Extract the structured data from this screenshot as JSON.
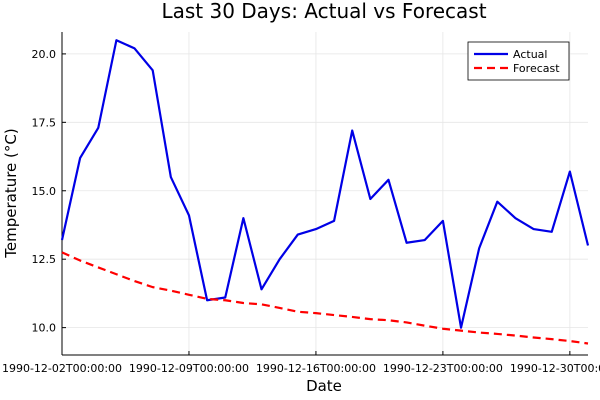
{
  "colors": {
    "actual": "#0000e6",
    "forecast": "#ff0000",
    "grid": "#e6e6e6",
    "axis": "#000000"
  },
  "chart_data": {
    "type": "line",
    "title": "Last 30 Days: Actual vs Forecast",
    "xlabel": "Date",
    "ylabel": "Temperature (°C)",
    "x_type": "date",
    "xlim": [
      "1990-12-02",
      "1990-12-31"
    ],
    "ylim": [
      9.0,
      20.8
    ],
    "grid": true,
    "legend_position": "top-right",
    "x_ticks": [
      {
        "value": "1990-12-02",
        "label": "1990-12-02T00:00:00"
      },
      {
        "value": "1990-12-09",
        "label": "1990-12-09T00:00:00"
      },
      {
        "value": "1990-12-16",
        "label": "1990-12-16T00:00:00"
      },
      {
        "value": "1990-12-23",
        "label": "1990-12-23T00:00:00"
      },
      {
        "value": "1990-12-30",
        "label": "1990-12-30T00:00:00"
      }
    ],
    "y_ticks": [
      {
        "value": 10.0,
        "label": "10.0"
      },
      {
        "value": 12.5,
        "label": "12.5"
      },
      {
        "value": 15.0,
        "label": "15.0"
      },
      {
        "value": 17.5,
        "label": "17.5"
      },
      {
        "value": 20.0,
        "label": "20.0"
      }
    ],
    "series": [
      {
        "name": "Actual",
        "style": "solid",
        "points": [
          [
            "1990-12-02",
            13.2
          ],
          [
            "1990-12-03",
            16.2
          ],
          [
            "1990-12-04",
            17.3
          ],
          [
            "1990-12-05",
            20.5
          ],
          [
            "1990-12-06",
            20.2
          ],
          [
            "1990-12-07",
            19.4
          ],
          [
            "1990-12-08",
            15.5
          ],
          [
            "1990-12-09",
            14.1
          ],
          [
            "1990-12-10",
            11.0
          ],
          [
            "1990-12-11",
            11.1
          ],
          [
            "1990-12-12",
            14.0
          ],
          [
            "1990-12-13",
            11.4
          ],
          [
            "1990-12-14",
            12.5
          ],
          [
            "1990-12-15",
            13.4
          ],
          [
            "1990-12-16",
            13.6
          ],
          [
            "1990-12-17",
            13.9
          ],
          [
            "1990-12-18",
            17.2
          ],
          [
            "1990-12-19",
            14.7
          ],
          [
            "1990-12-20",
            15.4
          ],
          [
            "1990-12-21",
            13.1
          ],
          [
            "1990-12-22",
            13.2
          ],
          [
            "1990-12-23",
            13.9
          ],
          [
            "1990-12-24",
            10.0
          ],
          [
            "1990-12-25",
            12.9
          ],
          [
            "1990-12-26",
            14.6
          ],
          [
            "1990-12-27",
            14.0
          ],
          [
            "1990-12-28",
            13.6
          ],
          [
            "1990-12-29",
            13.5
          ],
          [
            "1990-12-30",
            15.7
          ],
          [
            "1990-12-31",
            13.0
          ]
        ]
      },
      {
        "name": "Forecast",
        "style": "dashed",
        "points": [
          [
            "1990-12-02",
            12.75
          ],
          [
            "1990-12-03",
            12.45
          ],
          [
            "1990-12-04",
            12.2
          ],
          [
            "1990-12-05",
            11.95
          ],
          [
            "1990-12-06",
            11.7
          ],
          [
            "1990-12-07",
            11.48
          ],
          [
            "1990-12-08",
            11.35
          ],
          [
            "1990-12-09",
            11.2
          ],
          [
            "1990-12-10",
            11.05
          ],
          [
            "1990-12-11",
            11.0
          ],
          [
            "1990-12-12",
            10.9
          ],
          [
            "1990-12-13",
            10.85
          ],
          [
            "1990-12-14",
            10.72
          ],
          [
            "1990-12-15",
            10.58
          ],
          [
            "1990-12-16",
            10.53
          ],
          [
            "1990-12-17",
            10.46
          ],
          [
            "1990-12-18",
            10.39
          ],
          [
            "1990-12-19",
            10.31
          ],
          [
            "1990-12-20",
            10.27
          ],
          [
            "1990-12-21",
            10.19
          ],
          [
            "1990-12-22",
            10.07
          ],
          [
            "1990-12-23",
            9.96
          ],
          [
            "1990-12-24",
            9.89
          ],
          [
            "1990-12-25",
            9.82
          ],
          [
            "1990-12-26",
            9.77
          ],
          [
            "1990-12-27",
            9.71
          ],
          [
            "1990-12-28",
            9.64
          ],
          [
            "1990-12-29",
            9.58
          ],
          [
            "1990-12-30",
            9.51
          ],
          [
            "1990-12-31",
            9.42
          ]
        ]
      }
    ]
  }
}
